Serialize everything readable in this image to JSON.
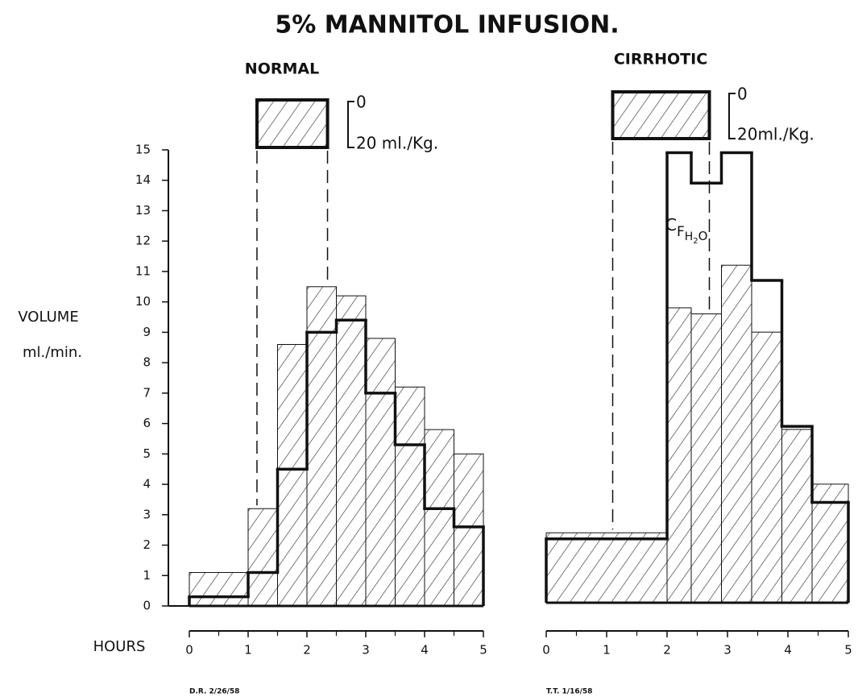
{
  "title": "5% MANNITOL INFUSION.",
  "chart_data": [
    {
      "type": "histogram",
      "title": "NORMAL",
      "ylabel": [
        "VOLUME",
        "ml./min."
      ],
      "xlabel": "HOURS",
      "bins": [
        0,
        1,
        1.5,
        2,
        2.5,
        3,
        3.5,
        4,
        4.5,
        5
      ],
      "series": [
        {
          "style": "hatched",
          "color": "#111",
          "values": [
            1.1,
            3.2,
            8.6,
            10.5,
            10.2,
            8.8,
            7.2,
            5.8,
            5.0
          ]
        },
        {
          "style": "thick",
          "color": "#111",
          "values": [
            0.3,
            1.1,
            4.5,
            9.0,
            9.4,
            7.0,
            5.3,
            3.2,
            2.6
          ]
        }
      ],
      "infusion": [
        1.15,
        2.35
      ],
      "scale_labels": [
        "0",
        "20 ml./Kg."
      ],
      "xlim": [
        0,
        5
      ],
      "xticks": [
        0,
        1,
        2,
        3,
        4,
        5
      ],
      "ylim": [
        0,
        15
      ],
      "yticks": [
        0,
        1,
        2,
        3,
        4,
        5,
        6,
        7,
        8,
        9,
        10,
        11,
        12,
        13,
        14,
        15
      ],
      "note": "D.R.   2/26/58"
    },
    {
      "type": "histogram",
      "title": "CIRRHOTIC",
      "bins": [
        0,
        2,
        2.4,
        2.9,
        3.4,
        3.9,
        4.4,
        5
      ],
      "series": [
        {
          "style": "hatched",
          "color": "#111",
          "values": [
            2.3,
            9.7,
            9.5,
            11.1,
            8.9,
            5.7,
            3.9
          ]
        },
        {
          "style": "thick",
          "color": "#111",
          "values": [
            2.1,
            14.8,
            13.8,
            14.8,
            10.6,
            5.8,
            3.3
          ]
        }
      ],
      "infusion": [
        1.1,
        2.7
      ],
      "scale_labels": [
        "0",
        "20ml./Kg."
      ],
      "annotation": [
        "C",
        "F",
        "H",
        "2",
        "O"
      ],
      "xlim": [
        0,
        5
      ],
      "xticks": [
        0,
        1,
        2,
        3,
        4,
        5
      ],
      "ylim": [
        0,
        15
      ],
      "note": "T.T.   1/16/58"
    }
  ]
}
